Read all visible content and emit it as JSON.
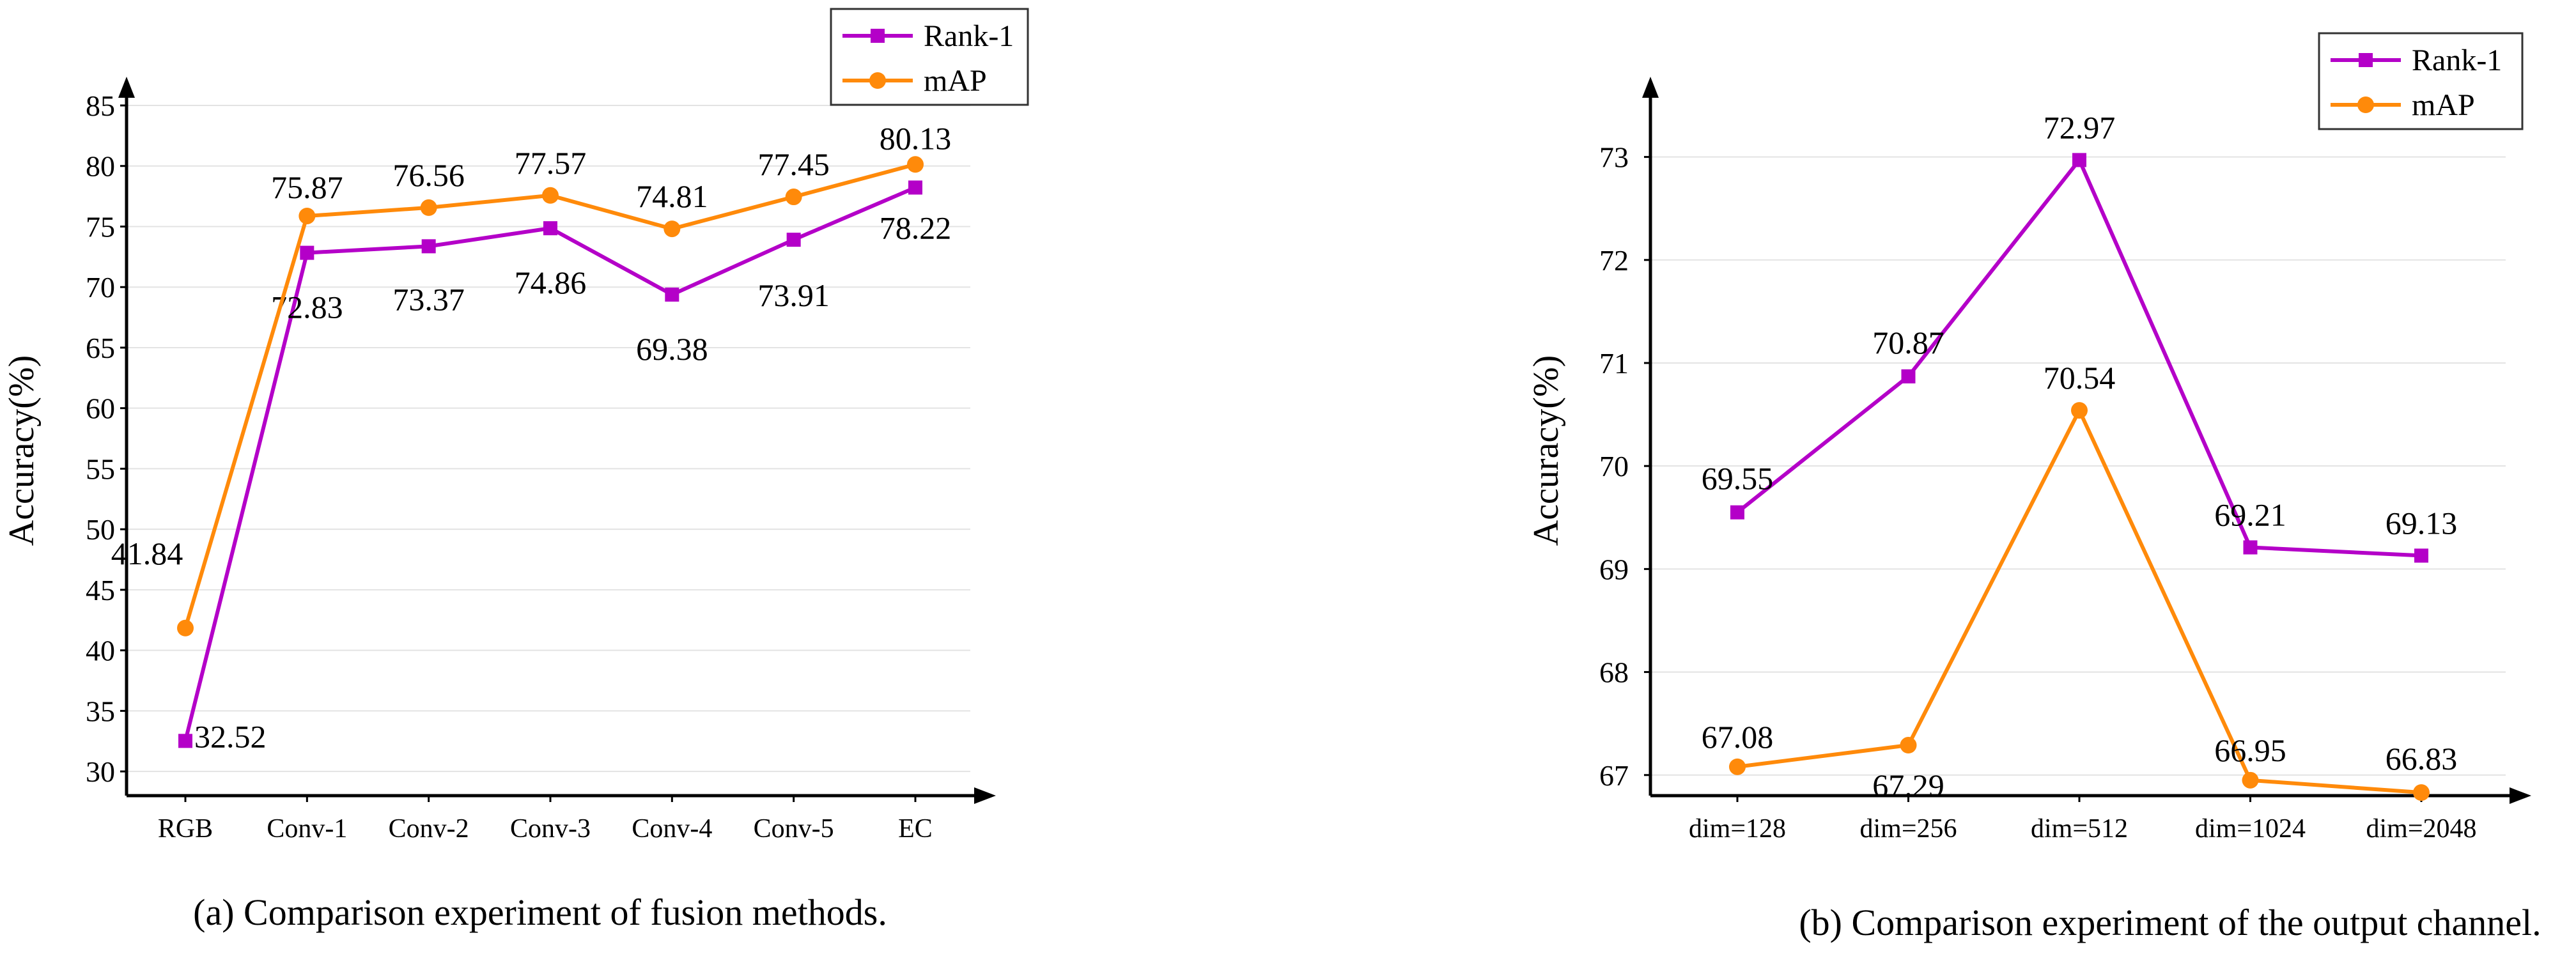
{
  "colors": {
    "rank1": "#b400c8",
    "map": "#ff8a0a",
    "grid": "#e3e3e3",
    "axis": "#000000"
  },
  "chart_data": [
    {
      "type": "line",
      "caption": "(a) Comparison experiment of fusion methods.",
      "ylabel": "Accuracy(%)",
      "xlabel": "",
      "categories": [
        "RGB",
        "Conv-1",
        "Conv-2",
        "Conv-3",
        "Conv-4",
        "Conv-5",
        "EC"
      ],
      "ylim": [
        28,
        85
      ],
      "yticks": [
        30,
        35,
        40,
        45,
        50,
        55,
        60,
        65,
        70,
        75,
        80,
        85
      ],
      "grid": true,
      "legend_position": "top-right",
      "series": [
        {
          "name": "Rank-1",
          "marker": "square",
          "color": "#b400c8",
          "values": [
            32.52,
            72.83,
            73.37,
            74.86,
            69.38,
            73.91,
            78.22
          ],
          "labels": [
            "32.52",
            "72.83",
            "73.37",
            "74.86",
            "69.38",
            "73.91",
            "78.22"
          ]
        },
        {
          "name": "mAP",
          "marker": "circle",
          "color": "#ff8a0a",
          "values": [
            41.84,
            75.87,
            76.56,
            77.57,
            74.81,
            77.45,
            80.13
          ],
          "labels": [
            "41.84",
            "75.87",
            "76.56",
            "77.57",
            "74.81",
            "77.45",
            "80.13"
          ]
        }
      ]
    },
    {
      "type": "line",
      "caption": "(b) Comparison experiment of the output channel.",
      "ylabel": "Accuracy(%)",
      "xlabel": "",
      "categories": [
        "dim=128",
        "dim=256",
        "dim=512",
        "dim=1024",
        "dim=2048"
      ],
      "ylim": [
        66.8,
        73.5
      ],
      "yticks": [
        67,
        68,
        69,
        70,
        71,
        72,
        73
      ],
      "grid": true,
      "legend_position": "top-right",
      "series": [
        {
          "name": "Rank-1",
          "marker": "square",
          "color": "#b400c8",
          "values": [
            69.55,
            70.87,
            72.97,
            69.21,
            69.13
          ],
          "labels": [
            "69.55",
            "70.87",
            "72.97",
            "69.21",
            "69.13"
          ]
        },
        {
          "name": "mAP",
          "marker": "circle",
          "color": "#ff8a0a",
          "values": [
            67.08,
            67.29,
            70.54,
            66.95,
            66.83
          ],
          "labels": [
            "67.08",
            "67.29",
            "70.54",
            "66.95",
            "66.83"
          ]
        }
      ]
    }
  ]
}
